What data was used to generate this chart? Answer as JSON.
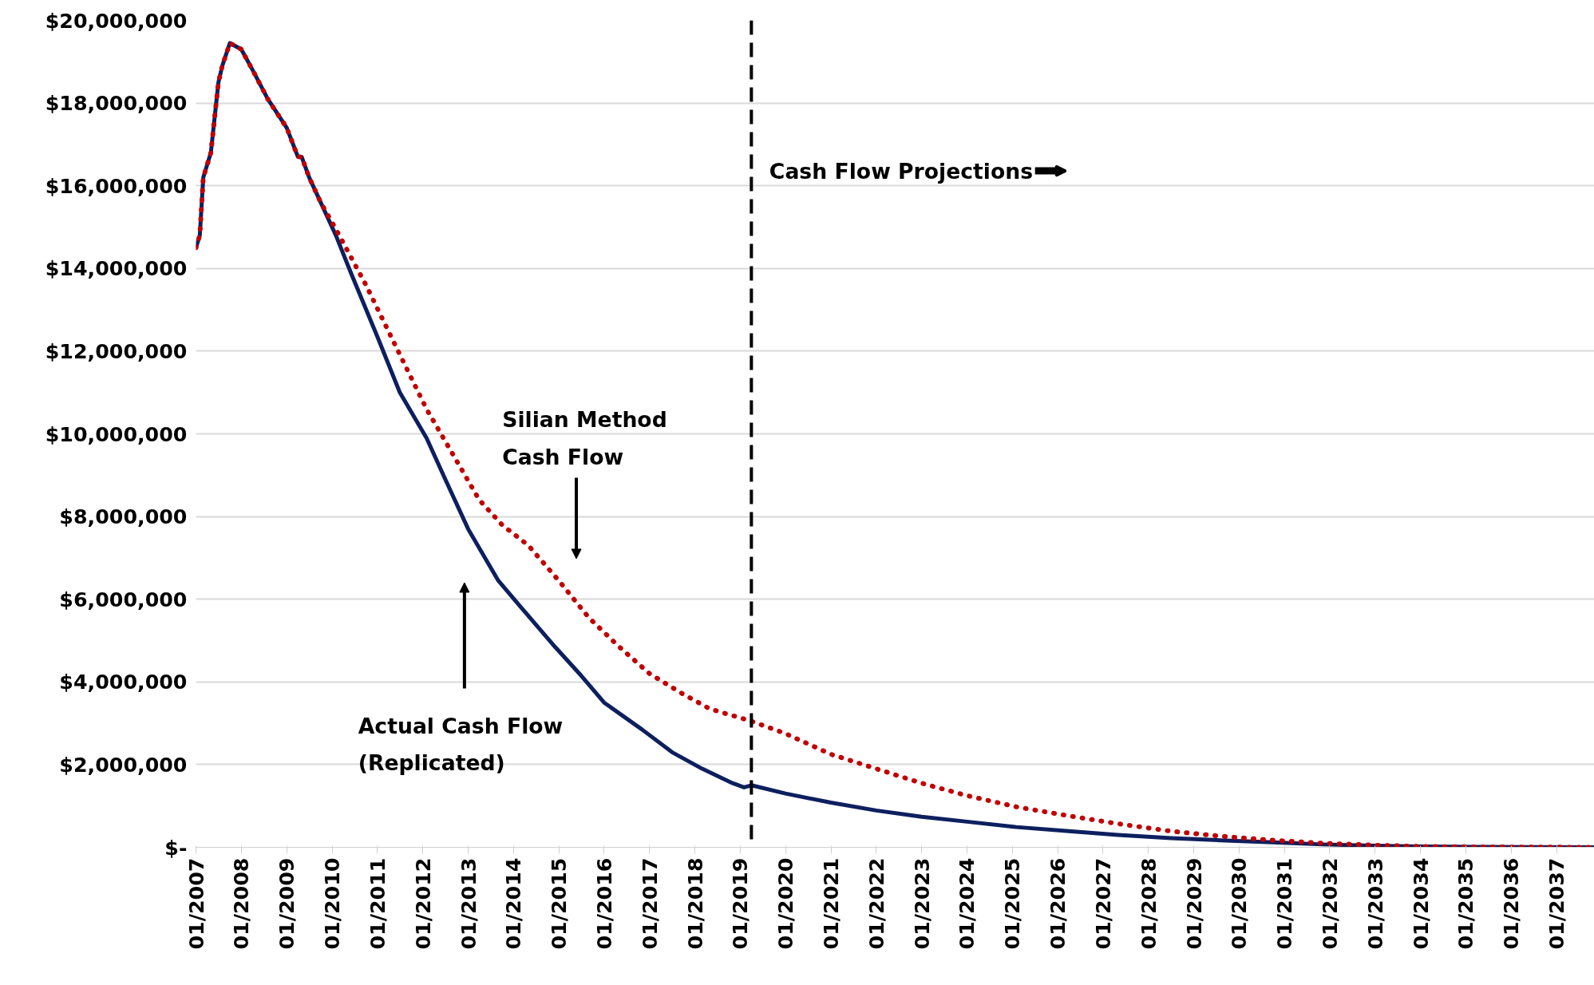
{
  "chart_data": {
    "type": "line",
    "xlim": [
      "2007-01",
      "2037-11"
    ],
    "ylim": [
      0,
      20000000
    ],
    "xticks": [
      {
        "value": "2007-01",
        "label": "01/2007"
      },
      {
        "value": "2008-01",
        "label": "01/2008"
      },
      {
        "value": "2009-01",
        "label": "01/2009"
      },
      {
        "value": "2010-01",
        "label": "01/2010"
      },
      {
        "value": "2011-01",
        "label": "01/2011"
      },
      {
        "value": "2012-01",
        "label": "01/2012"
      },
      {
        "value": "2013-01",
        "label": "01/2013"
      },
      {
        "value": "2014-01",
        "label": "01/2014"
      },
      {
        "value": "2015-01",
        "label": "01/2015"
      },
      {
        "value": "2016-01",
        "label": "01/2016"
      },
      {
        "value": "2017-01",
        "label": "01/2017"
      },
      {
        "value": "2018-01",
        "label": "01/2018"
      },
      {
        "value": "2019-01",
        "label": "01/2019"
      },
      {
        "value": "2020-01",
        "label": "01/2020"
      },
      {
        "value": "2021-01",
        "label": "01/2021"
      },
      {
        "value": "2022-01",
        "label": "01/2022"
      },
      {
        "value": "2023-01",
        "label": "01/2023"
      },
      {
        "value": "2024-01",
        "label": "01/2024"
      },
      {
        "value": "2025-01",
        "label": "01/2025"
      },
      {
        "value": "2026-01",
        "label": "01/2026"
      },
      {
        "value": "2027-01",
        "label": "01/2027"
      },
      {
        "value": "2028-01",
        "label": "01/2028"
      },
      {
        "value": "2029-01",
        "label": "01/2029"
      },
      {
        "value": "2030-01",
        "label": "01/2030"
      },
      {
        "value": "2031-01",
        "label": "01/2031"
      },
      {
        "value": "2032-01",
        "label": "01/2032"
      },
      {
        "value": "2033-01",
        "label": "01/2033"
      },
      {
        "value": "2034-01",
        "label": "01/2034"
      },
      {
        "value": "2035-01",
        "label": "01/2035"
      },
      {
        "value": "2036-01",
        "label": "01/2036"
      },
      {
        "value": "2037-01",
        "label": "01/2037"
      }
    ],
    "yticks": [
      {
        "value": 0,
        "label": "$-"
      },
      {
        "value": 2000000,
        "label": "$2,000,000"
      },
      {
        "value": 4000000,
        "label": "$4,000,000"
      },
      {
        "value": 6000000,
        "label": "$6,000,000"
      },
      {
        "value": 8000000,
        "label": "$8,000,000"
      },
      {
        "value": 10000000,
        "label": "$10,000,000"
      },
      {
        "value": 12000000,
        "label": "$12,000,000"
      },
      {
        "value": 14000000,
        "label": "$14,000,000"
      },
      {
        "value": 16000000,
        "label": "$16,000,000"
      },
      {
        "value": 18000000,
        "label": "$18,000,000"
      },
      {
        "value": 20000000,
        "label": "$20,000,000"
      }
    ],
    "grid": "y",
    "series": [
      {
        "color": "#0d1f5e",
        "line_style": "solid",
        "x": [
          "2007-01",
          "2007-02",
          "2007-03",
          "2007-05",
          "2007-07",
          "2007-08",
          "2007-10",
          "2008-01",
          "2008-04",
          "2008-08",
          "2009-01",
          "2009-04",
          "2009-05",
          "2009-07",
          "2009-10",
          "2010-02",
          "2010-06",
          "2011-01",
          "2011-07",
          "2012-02",
          "2012-07",
          "2013-01",
          "2013-09",
          "2014-04",
          "2014-12",
          "2015-07",
          "2016-01",
          "2016-11",
          "2017-07",
          "2018-03",
          "2018-11",
          "2019-02",
          "2019-04",
          "2020-01",
          "2021-01",
          "2022-01",
          "2023-01",
          "2024-01",
          "2025-02",
          "2026-04",
          "2027-05",
          "2028-07",
          "2029-08",
          "2030-10",
          "2031-11",
          "2033-01",
          "2034-02",
          "2035-04",
          "2037-11"
        ],
        "values": [
          14500000,
          14800000,
          16200000,
          16800000,
          18500000,
          18900000,
          19450000,
          19300000,
          18800000,
          18100000,
          17400000,
          16700000,
          16700000,
          16200000,
          15600000,
          14800000,
          13900000,
          12350000,
          11000000,
          9900000,
          8900000,
          7700000,
          6450000,
          5700000,
          4850000,
          4150000,
          3500000,
          2850000,
          2300000,
          1900000,
          1550000,
          1450000,
          1500000,
          1300000,
          1080000,
          890000,
          740000,
          620000,
          490000,
          390000,
          300000,
          220000,
          170000,
          120000,
          70000,
          40000,
          20000,
          10000,
          0
        ]
      },
      {
        "color": "#c00000",
        "line_style": "dotted",
        "x": [
          "2007-01",
          "2007-02",
          "2007-03",
          "2007-05",
          "2007-07",
          "2007-08",
          "2007-10",
          "2008-01",
          "2008-04",
          "2008-08",
          "2009-01",
          "2009-04",
          "2009-05",
          "2009-07",
          "2009-10",
          "2010-02",
          "2010-10",
          "2011-06",
          "2012-02",
          "2012-09",
          "2013-04",
          "2013-10",
          "2014-05",
          "2015-01",
          "2015-09",
          "2016-05",
          "2017-01",
          "2017-10",
          "2018-05",
          "2019-04",
          "2020-01",
          "2021-01",
          "2022-01",
          "2023-01",
          "2024-01",
          "2025-02",
          "2026-04",
          "2027-05",
          "2028-07",
          "2029-08",
          "2030-10",
          "2031-11",
          "2033-01",
          "2034-02",
          "2035-04",
          "2037-11"
        ],
        "values": [
          14500000,
          14800000,
          16200000,
          16800000,
          18500000,
          18900000,
          19450000,
          19300000,
          18800000,
          18100000,
          17400000,
          16700000,
          16700000,
          16200000,
          15600000,
          14950000,
          13600000,
          12100000,
          10600000,
          9500000,
          8400000,
          7800000,
          7300000,
          6450000,
          5550000,
          4850000,
          4200000,
          3700000,
          3350000,
          3050000,
          2750000,
          2250000,
          1900000,
          1550000,
          1250000,
          980000,
          760000,
          570000,
          390000,
          270000,
          170000,
          100000,
          50000,
          20000,
          10000,
          0
        ]
      }
    ],
    "ref_lines": [
      {
        "axis": "x",
        "value": "2019-04",
        "label": "Cash Flow Projections",
        "color": "#000000",
        "line_style": "dashed"
      }
    ],
    "annotations": [
      "Silian Method\nCash Flow",
      "Actual Cash Flow\n(Replicated)"
    ]
  }
}
